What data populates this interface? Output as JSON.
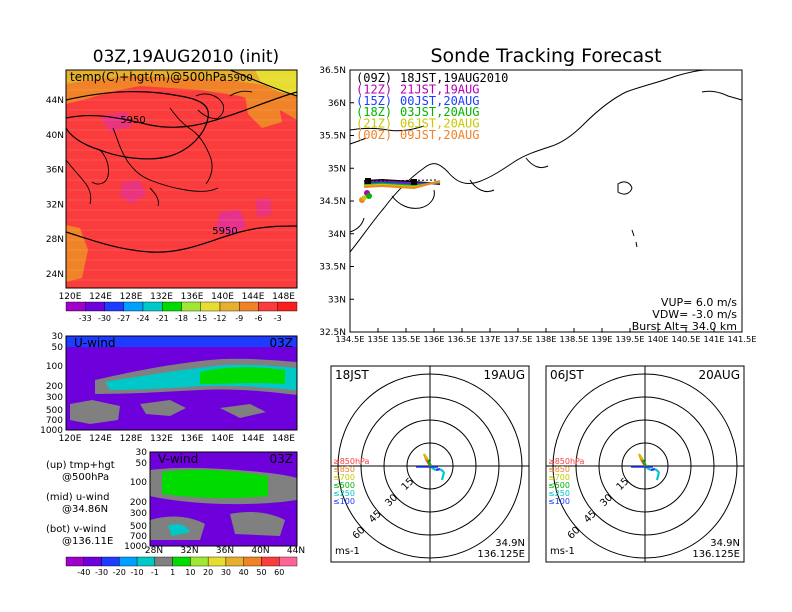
{
  "left_title": "03Z,19AUG2010 (init)",
  "right_title": "Sonde Tracking Forecast",
  "top_map": {
    "label": "temp(C)+hgt(m)@500hPa",
    "lat_labels": [
      "44N",
      "40N",
      "36N",
      "32N",
      "28N",
      "24N"
    ],
    "lon_labels": [
      "120E",
      "124E",
      "128E",
      "132E",
      "136E",
      "140E",
      "144E",
      "148E"
    ],
    "contour_labels": [
      "5950",
      "5950",
      "5900"
    ],
    "colorbar_labels": [
      "-33",
      "-30",
      "-27",
      "-24",
      "-21",
      "-18",
      "-15",
      "-12",
      "-9",
      "-6",
      "-3"
    ],
    "colorbar_colors": [
      "#a000c8",
      "#6e00dc",
      "#1e3cff",
      "#00a0ff",
      "#00c8c8",
      "#00dc00",
      "#a0e632",
      "#e6dc32",
      "#e6af2d",
      "#f08228",
      "#fa3c3c"
    ]
  },
  "u_wind": {
    "label": "U-wind",
    "time": "03Z",
    "p_labels": [
      "30",
      "50",
      "100",
      "200",
      "300",
      "500",
      "700",
      "1000"
    ],
    "lon_labels": [
      "120E",
      "124E",
      "128E",
      "132E",
      "136E",
      "140E",
      "144E",
      "148E"
    ]
  },
  "v_wind": {
    "label": "V-wind",
    "time": "03Z",
    "p_labels": [
      "30",
      "50",
      "100",
      "200",
      "300",
      "500",
      "700",
      "1000"
    ],
    "lat_labels": [
      "28N",
      "32N",
      "36N",
      "40N",
      "44N"
    ]
  },
  "legend_text": {
    "up": "(up) tmp+hgt",
    "up2": "@500hPa",
    "mid": "(mid) u-wind",
    "mid2": "@34.86N",
    "bot": "(bot) v-wind",
    "bot2": "@136.11E"
  },
  "wind_colorbar_labels": [
    "-40",
    "-30",
    "-20",
    "-10",
    "-1",
    "1",
    "10",
    "20",
    "30",
    "40",
    "50",
    "60"
  ],
  "wind_colorbar_colors": [
    "#a000c8",
    "#6e00dc",
    "#1e3cff",
    "#00a0ff",
    "#00c8c8",
    "#808080",
    "#00dc00",
    "#a0e632",
    "#e6dc32",
    "#e6af2d",
    "#f08228",
    "#fa3c3c"
  ],
  "track_map": {
    "lat_labels": [
      "36.5N",
      "36N",
      "35.5N",
      "35N",
      "34.5N",
      "34N",
      "33.5N",
      "33N",
      "32.5N"
    ],
    "lon_labels": [
      "134.5E",
      "135E",
      "135.5E",
      "136E",
      "136.5E",
      "137E",
      "137.5E",
      "138E",
      "138.5E",
      "139E",
      "139.5E",
      "140E",
      "140.5E",
      "141E",
      "141.5E"
    ],
    "launches": [
      {
        "code": "(09Z)",
        "text": "18JST,19AUG2010",
        "color": "#000000"
      },
      {
        "code": "(12Z)",
        "text": "21JST,19AUG",
        "color": "#b400b4"
      },
      {
        "code": "(15Z)",
        "text": "00JST,20AUG",
        "color": "#1e3cff"
      },
      {
        "code": "(18Z)",
        "text": "03JST,20AUG",
        "color": "#00b400"
      },
      {
        "code": "(21Z)",
        "text": "06JST,20AUG",
        "color": "#c8c800"
      },
      {
        "code": "(00Z)",
        "text": "09JST,20AUG",
        "color": "#f08228"
      }
    ],
    "vup": "VUP= 6.0 m/s",
    "vdw": "VDW= -3.0 m/s",
    "burst": "Burst Alt= 34.0 km"
  },
  "hodographs": [
    {
      "time": "18JST",
      "date": "19AUG",
      "lat": "34.9N",
      "lon": "136.125E",
      "unit": "ms-1",
      "rings": [
        "15",
        "30",
        "45",
        "60"
      ]
    },
    {
      "time": "06JST",
      "date": "20AUG",
      "lat": "34.9N",
      "lon": "136.125E",
      "unit": "ms-1",
      "rings": [
        "15",
        "30",
        "45",
        "60"
      ]
    }
  ],
  "hodo_legend": [
    {
      "text": "≥850hPa",
      "color": "#fa3c3c"
    },
    {
      "text": "≤850",
      "color": "#f08228"
    },
    {
      "text": "≤700",
      "color": "#c8c800"
    },
    {
      "text": "≤500",
      "color": "#00b400"
    },
    {
      "text": "≤250",
      "color": "#00c8c8"
    },
    {
      "text": "≤100",
      "color": "#1e3cff"
    }
  ]
}
